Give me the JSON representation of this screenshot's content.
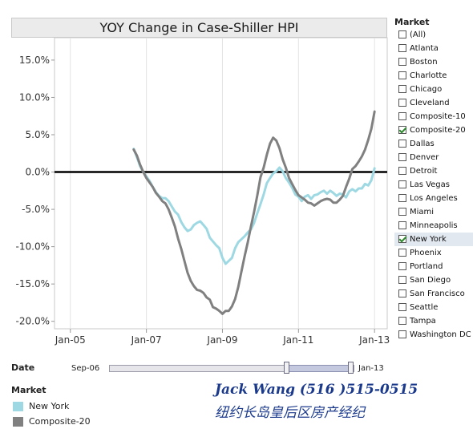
{
  "chart": {
    "title": "YOY Change in Case-Shiller HPI"
  },
  "chart_data": {
    "type": "line",
    "title": "YOY Change in Case-Shiller HPI",
    "xlabel": "",
    "ylabel": "",
    "x_range": [
      "2004-08",
      "2013-05"
    ],
    "x_ticks": [
      "Jan-05",
      "Jan-07",
      "Jan-09",
      "Jan-11",
      "Jan-13"
    ],
    "ylim": [
      -21,
      18
    ],
    "y_ticks": [
      15,
      10,
      5,
      0,
      -5,
      -10,
      -15,
      -20
    ],
    "y_tick_labels": [
      "15.0%",
      "10.0%",
      "5.0%",
      "0.0%",
      "-5.0%",
      "-10.0%",
      "-15.0%",
      "-20.0%"
    ],
    "zero_line": true,
    "grid": {
      "x": true,
      "y": false
    },
    "series": [
      {
        "name": "New York",
        "color": "#9ed9e3",
        "points": [
          [
            "2006-09",
            3.1
          ],
          [
            "2006-10",
            2.0
          ],
          [
            "2006-11",
            0.8
          ],
          [
            "2006-12",
            0.0
          ],
          [
            "2007-01",
            -0.6
          ],
          [
            "2007-02",
            -1.2
          ],
          [
            "2007-03",
            -2.0
          ],
          [
            "2007-04",
            -2.7
          ],
          [
            "2007-05",
            -3.2
          ],
          [
            "2007-06",
            -3.5
          ],
          [
            "2007-07",
            -3.5
          ],
          [
            "2007-08",
            -3.9
          ],
          [
            "2007-09",
            -4.6
          ],
          [
            "2007-10",
            -5.3
          ],
          [
            "2007-11",
            -5.7
          ],
          [
            "2007-12",
            -6.7
          ],
          [
            "2008-01",
            -7.4
          ],
          [
            "2008-02",
            -7.9
          ],
          [
            "2008-03",
            -7.7
          ],
          [
            "2008-04",
            -7.1
          ],
          [
            "2008-05",
            -6.8
          ],
          [
            "2008-06",
            -6.6
          ],
          [
            "2008-07",
            -7.1
          ],
          [
            "2008-08",
            -7.6
          ],
          [
            "2008-09",
            -8.8
          ],
          [
            "2008-10",
            -9.3
          ],
          [
            "2008-11",
            -9.8
          ],
          [
            "2008-12",
            -10.2
          ],
          [
            "2009-01",
            -11.5
          ],
          [
            "2009-02",
            -12.3
          ],
          [
            "2009-03",
            -11.9
          ],
          [
            "2009-04",
            -11.5
          ],
          [
            "2009-05",
            -10.2
          ],
          [
            "2009-06",
            -9.4
          ],
          [
            "2009-07",
            -9.0
          ],
          [
            "2009-08",
            -8.6
          ],
          [
            "2009-09",
            -8.1
          ],
          [
            "2009-10",
            -7.7
          ],
          [
            "2009-11",
            -6.8
          ],
          [
            "2009-12",
            -5.5
          ],
          [
            "2010-01",
            -4.3
          ],
          [
            "2010-02",
            -3.0
          ],
          [
            "2010-03",
            -1.5
          ],
          [
            "2010-04",
            -0.8
          ],
          [
            "2010-05",
            -0.2
          ],
          [
            "2010-06",
            0.1
          ],
          [
            "2010-07",
            0.6
          ],
          [
            "2010-08",
            0.1
          ],
          [
            "2010-09",
            -0.8
          ],
          [
            "2010-10",
            -1.4
          ],
          [
            "2010-11",
            -2.1
          ],
          [
            "2010-12",
            -3.0
          ],
          [
            "2011-01",
            -3.3
          ],
          [
            "2011-02",
            -3.9
          ],
          [
            "2011-03",
            -3.3
          ],
          [
            "2011-04",
            -3.1
          ],
          [
            "2011-05",
            -3.6
          ],
          [
            "2011-06",
            -3.1
          ],
          [
            "2011-07",
            -3.0
          ],
          [
            "2011-08",
            -2.7
          ],
          [
            "2011-09",
            -2.5
          ],
          [
            "2011-10",
            -2.9
          ],
          [
            "2011-11",
            -2.5
          ],
          [
            "2011-12",
            -2.8
          ],
          [
            "2012-01",
            -3.2
          ],
          [
            "2012-02",
            -2.9
          ],
          [
            "2012-03",
            -3.0
          ],
          [
            "2012-04",
            -3.4
          ],
          [
            "2012-05",
            -2.6
          ],
          [
            "2012-06",
            -2.3
          ],
          [
            "2012-07",
            -2.6
          ],
          [
            "2012-08",
            -2.2
          ],
          [
            "2012-09",
            -2.2
          ],
          [
            "2012-10",
            -1.6
          ],
          [
            "2012-11",
            -1.8
          ],
          [
            "2012-12",
            -1.1
          ],
          [
            "2013-01",
            0.5
          ]
        ]
      },
      {
        "name": "Composite-20",
        "color": "#808080",
        "points": [
          [
            "2006-09",
            3.0
          ],
          [
            "2006-10",
            2.2
          ],
          [
            "2006-11",
            1.0
          ],
          [
            "2006-12",
            0.0
          ],
          [
            "2007-01",
            -0.8
          ],
          [
            "2007-02",
            -1.4
          ],
          [
            "2007-03",
            -2.0
          ],
          [
            "2007-04",
            -2.8
          ],
          [
            "2007-05",
            -3.3
          ],
          [
            "2007-06",
            -3.9
          ],
          [
            "2007-07",
            -4.2
          ],
          [
            "2007-08",
            -5.0
          ],
          [
            "2007-09",
            -6.1
          ],
          [
            "2007-10",
            -7.3
          ],
          [
            "2007-11",
            -8.9
          ],
          [
            "2007-12",
            -10.3
          ],
          [
            "2008-01",
            -11.9
          ],
          [
            "2008-02",
            -13.5
          ],
          [
            "2008-03",
            -14.6
          ],
          [
            "2008-04",
            -15.3
          ],
          [
            "2008-05",
            -15.8
          ],
          [
            "2008-06",
            -15.9
          ],
          [
            "2008-07",
            -16.2
          ],
          [
            "2008-08",
            -16.8
          ],
          [
            "2008-09",
            -17.1
          ],
          [
            "2008-10",
            -18.1
          ],
          [
            "2008-11",
            -18.3
          ],
          [
            "2008-12",
            -18.6
          ],
          [
            "2009-01",
            -19.0
          ],
          [
            "2009-02",
            -18.6
          ],
          [
            "2009-03",
            -18.6
          ],
          [
            "2009-04",
            -18.0
          ],
          [
            "2009-05",
            -17.0
          ],
          [
            "2009-06",
            -15.4
          ],
          [
            "2009-07",
            -13.3
          ],
          [
            "2009-08",
            -11.3
          ],
          [
            "2009-09",
            -9.4
          ],
          [
            "2009-10",
            -7.3
          ],
          [
            "2009-11",
            -5.3
          ],
          [
            "2009-12",
            -3.1
          ],
          [
            "2010-01",
            -0.7
          ],
          [
            "2010-02",
            0.6
          ],
          [
            "2010-03",
            2.3
          ],
          [
            "2010-04",
            3.8
          ],
          [
            "2010-05",
            4.6
          ],
          [
            "2010-06",
            4.2
          ],
          [
            "2010-07",
            3.2
          ],
          [
            "2010-08",
            1.7
          ],
          [
            "2010-09",
            0.6
          ],
          [
            "2010-10",
            -0.8
          ],
          [
            "2010-11",
            -1.6
          ],
          [
            "2010-12",
            -2.4
          ],
          [
            "2011-01",
            -3.1
          ],
          [
            "2011-02",
            -3.4
          ],
          [
            "2011-03",
            -3.7
          ],
          [
            "2011-04",
            -4.1
          ],
          [
            "2011-05",
            -4.2
          ],
          [
            "2011-06",
            -4.5
          ],
          [
            "2011-07",
            -4.2
          ],
          [
            "2011-08",
            -3.9
          ],
          [
            "2011-09",
            -3.7
          ],
          [
            "2011-10",
            -3.6
          ],
          [
            "2011-11",
            -3.7
          ],
          [
            "2011-12",
            -4.1
          ],
          [
            "2012-01",
            -4.1
          ],
          [
            "2012-02",
            -3.7
          ],
          [
            "2012-03",
            -3.2
          ],
          [
            "2012-04",
            -2.0
          ],
          [
            "2012-05",
            -0.9
          ],
          [
            "2012-06",
            0.4
          ],
          [
            "2012-07",
            0.8
          ],
          [
            "2012-08",
            1.4
          ],
          [
            "2012-09",
            2.1
          ],
          [
            "2012-10",
            3.0
          ],
          [
            "2012-11",
            4.3
          ],
          [
            "2012-12",
            5.8
          ],
          [
            "2013-01",
            8.1
          ]
        ]
      }
    ]
  },
  "filter": {
    "title": "Market",
    "items": [
      {
        "label": "(All)",
        "checked": false
      },
      {
        "label": "Atlanta",
        "checked": false
      },
      {
        "label": "Boston",
        "checked": false
      },
      {
        "label": "Charlotte",
        "checked": false
      },
      {
        "label": "Chicago",
        "checked": false
      },
      {
        "label": "Cleveland",
        "checked": false
      },
      {
        "label": "Composite-10",
        "checked": false
      },
      {
        "label": "Composite-20",
        "checked": true
      },
      {
        "label": "Dallas",
        "checked": false
      },
      {
        "label": "Denver",
        "checked": false
      },
      {
        "label": "Detroit",
        "checked": false
      },
      {
        "label": "Las Vegas",
        "checked": false
      },
      {
        "label": "Los Angeles",
        "checked": false
      },
      {
        "label": "Miami",
        "checked": false
      },
      {
        "label": "Minneapolis",
        "checked": false
      },
      {
        "label": "New York",
        "checked": true,
        "highlighted": true
      },
      {
        "label": "Phoenix",
        "checked": false
      },
      {
        "label": "Portland",
        "checked": false
      },
      {
        "label": "San Diego",
        "checked": false
      },
      {
        "label": "San Francisco",
        "checked": false
      },
      {
        "label": "Seattle",
        "checked": false
      },
      {
        "label": "Tampa",
        "checked": false
      },
      {
        "label": "Washington DC",
        "checked": false
      }
    ]
  },
  "date_filter": {
    "label": "Date",
    "start": "Sep-06",
    "end": "Jan-13",
    "selected_range_fraction": [
      0.725,
      0.985
    ]
  },
  "legend": {
    "title": "Market",
    "items": [
      {
        "label": "New York",
        "color": "#9ed9e3"
      },
      {
        "label": "Composite-20",
        "color": "#808080"
      }
    ]
  },
  "watermark": {
    "line1": "Jack Wang  (516 )515-0515",
    "line2": "纽约长岛皇后区房产经纪"
  }
}
